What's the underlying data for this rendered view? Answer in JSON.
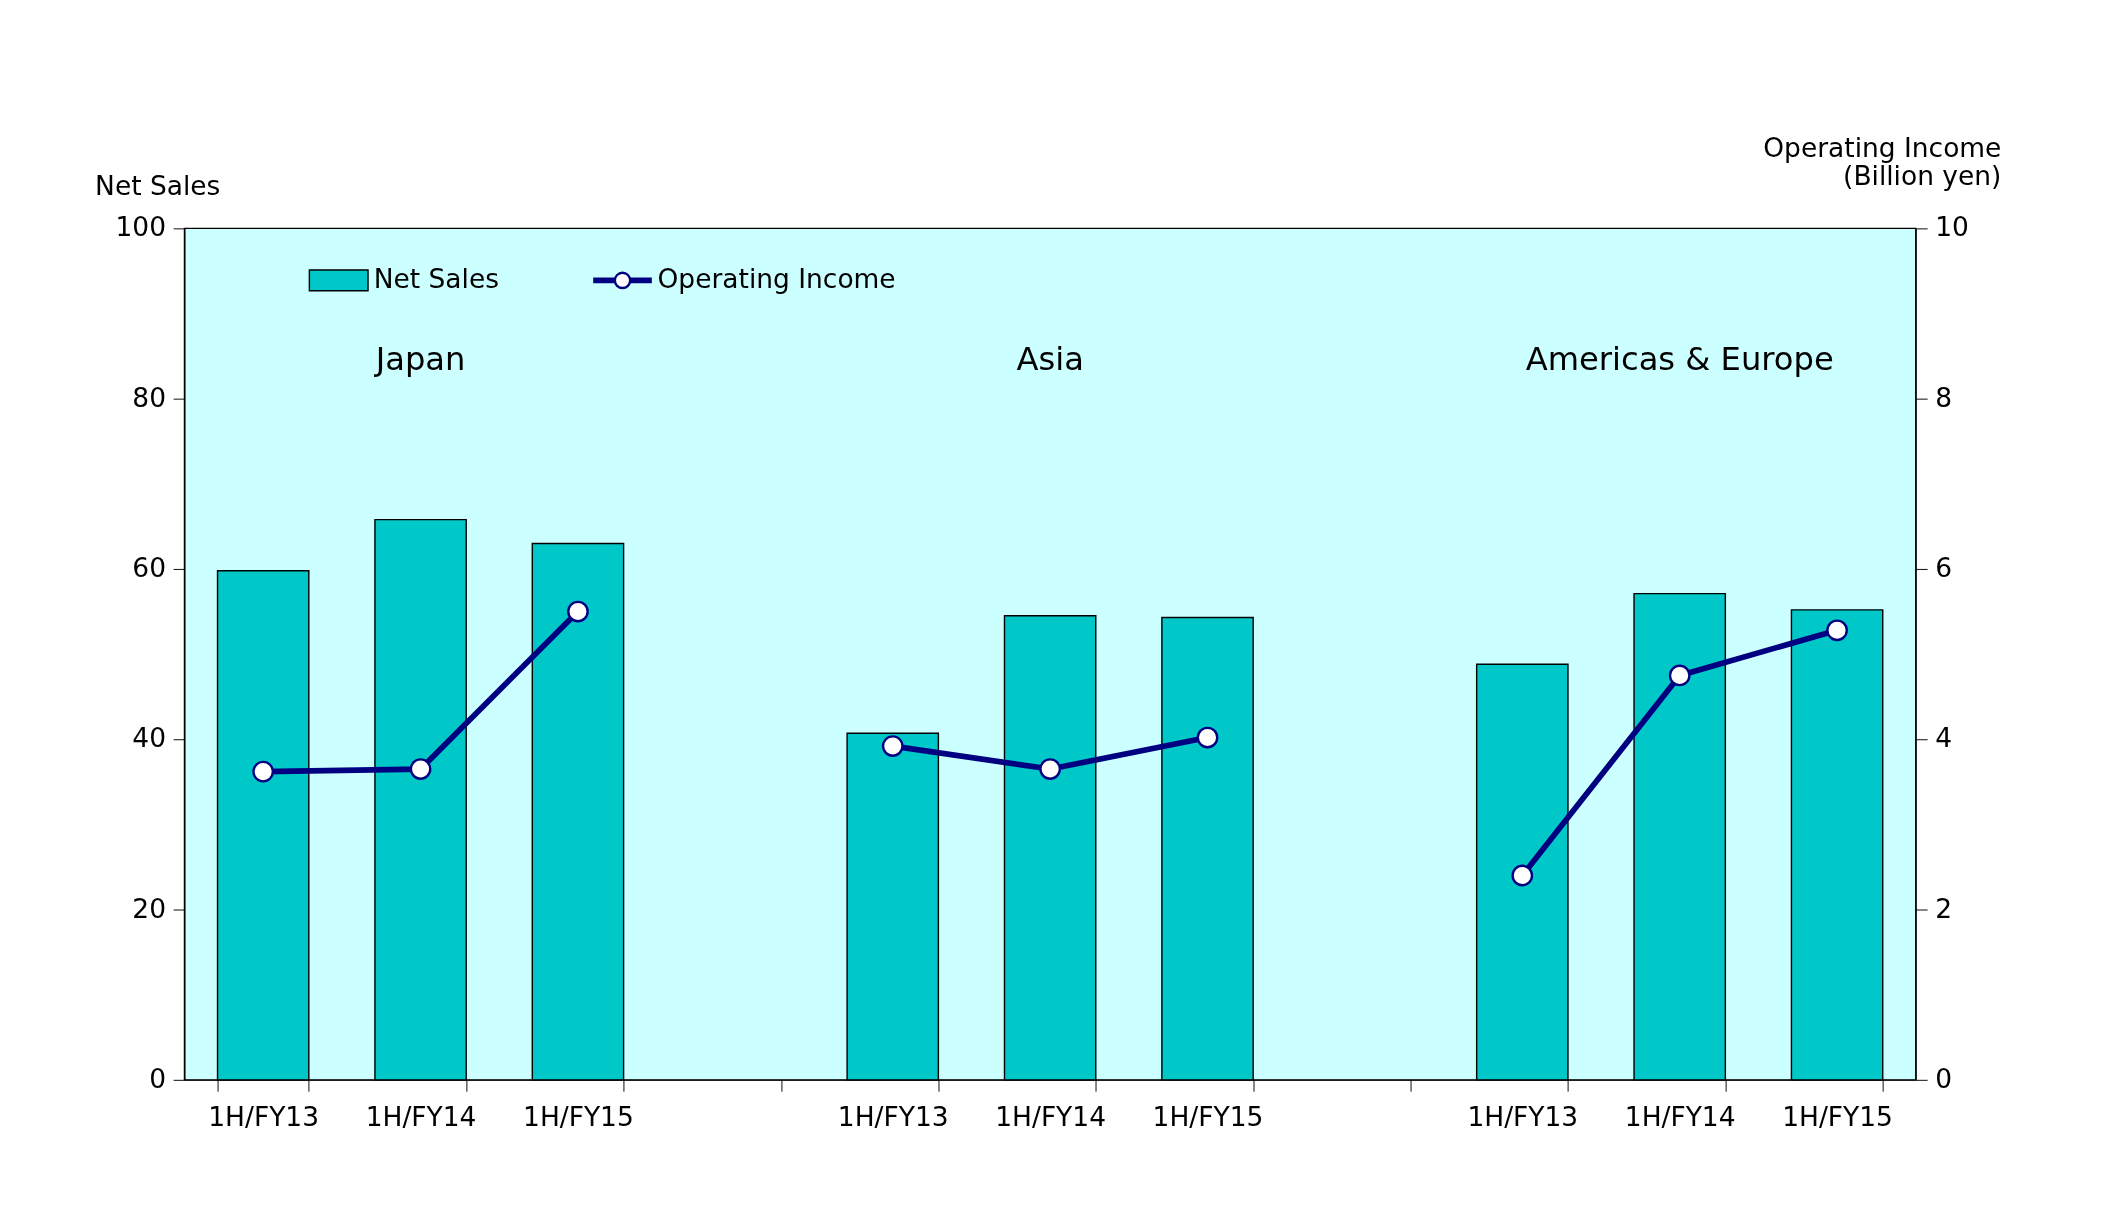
{
  "chart_data": {
    "type": "bar",
    "categories": [
      "1H/FY13",
      "1H/FY14",
      "1H/FY15",
      null,
      "1H/FY13",
      "1H/FY14",
      "1H/FY15",
      null,
      "1H/FY13",
      "1H/FY14",
      "1H/FY15"
    ],
    "series": [
      {
        "name": "Net Sales",
        "color": "#00c8c8",
        "values": [
          59.8,
          65.8,
          63.0,
          null,
          40.7,
          54.5,
          54.3,
          null,
          48.8,
          57.1,
          55.2
        ]
      },
      {
        "name": "Operating Income",
        "type": "line",
        "axis": "y2",
        "color": "#000080",
        "marker": "circle",
        "values": [
          3.62,
          3.65,
          5.5,
          null,
          3.92,
          3.65,
          4.02,
          null,
          2.4,
          4.75,
          5.28
        ]
      }
    ],
    "ylabel": "Net Sales",
    "y2label": "Operating Income\n(Billion yen)",
    "ylim": [
      0,
      100
    ],
    "yticks": [
      0,
      20,
      40,
      60,
      80,
      100
    ],
    "y2lim": [
      0,
      10
    ],
    "y2ticks": [
      0,
      2,
      4,
      6,
      8,
      10
    ],
    "annotations": [
      "Japan",
      "Asia",
      "Americas & Europe"
    ],
    "legend": "top left",
    "grid": false
  }
}
